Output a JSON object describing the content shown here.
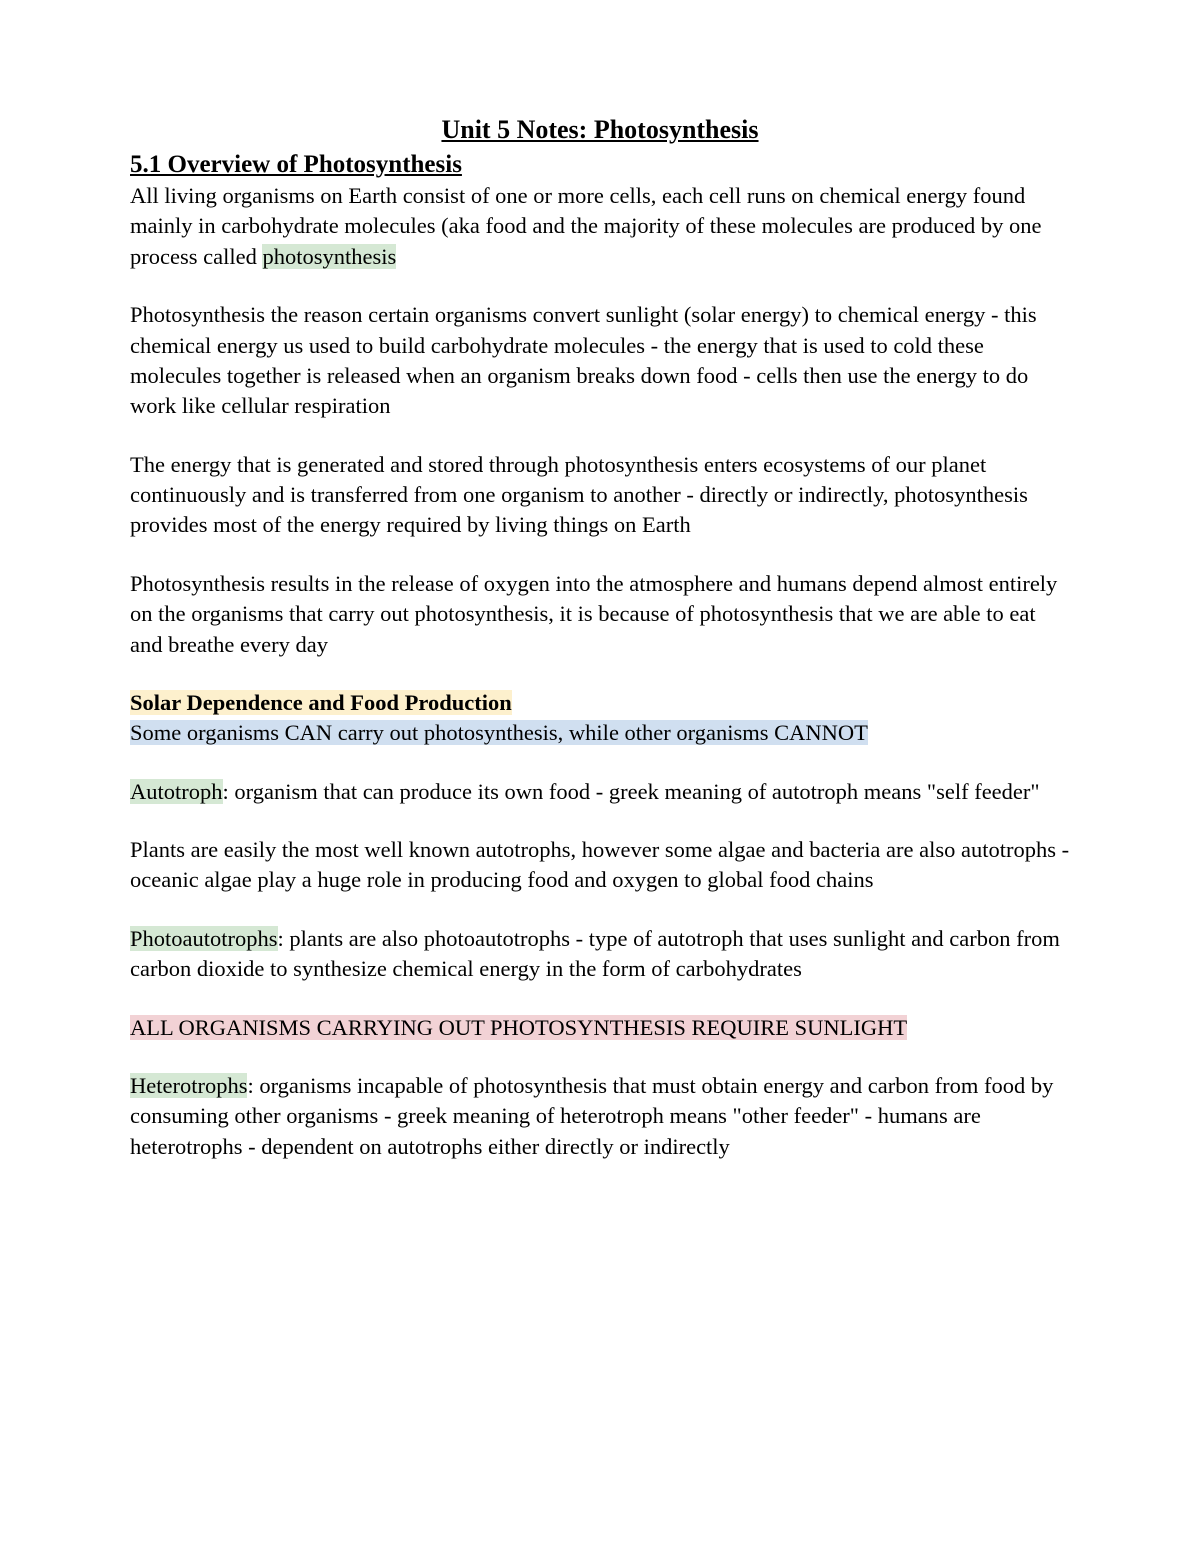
{
  "colors": {
    "text": "#000000",
    "background": "#ffffff",
    "highlight_green": "#d5e8d4",
    "highlight_yellow": "#fdf0cd",
    "highlight_blue": "#d0dff0",
    "highlight_pink": "#f2d2d5"
  },
  "typography": {
    "font_family": "Georgia, 'Times New Roman', serif",
    "title_fontsize": 26,
    "heading_fontsize": 25,
    "body_fontsize": 22.5,
    "line_height": 1.35
  },
  "title": "Unit 5 Notes: Photosynthesis",
  "section_heading": "5.1 Overview of Photosynthesis",
  "para1": {
    "pre": "All living organisms on Earth consist of one or more cells, each cell runs on chemical energy found mainly in carbohydrate molecules (aka food and the majority of these molecules are produced by one process called ",
    "hl": "photosynthesis"
  },
  "para2": "Photosynthesis the reason certain organisms convert sunlight (solar energy) to chemical energy - this chemical energy us used to build carbohydrate molecules - the energy that is used to cold these molecules together is released when an organism breaks down food - cells then use the energy to do work like cellular respiration",
  "para3": "The energy that is generated and stored through photosynthesis enters ecosystems of our planet continuously and is transferred from one organism to another - directly or indirectly, photosynthesis provides most of the energy required by living things on Earth",
  "para4": "Photosynthesis results in the release of oxygen into the atmosphere and humans depend almost entirely on the organisms that carry out photosynthesis, it is because of photosynthesis that we are able to eat and breathe every day",
  "sub_heading": "Solar Dependence and Food Production",
  "para5_hl": "Some organisms CAN carry out photosynthesis, while other organisms CANNOT",
  "para6": {
    "hl": "Autotroph",
    "post": ": organism that can produce its own food - greek meaning of autotroph means \"self feeder\""
  },
  "para7": "Plants are easily the most well known autotrophs, however some algae and bacteria are also autotrophs - oceanic algae play a huge role in producing food and oxygen to global food chains",
  "para8": {
    "hl": "Photoautotrophs",
    "post": ": plants are also photoautotrophs - type of autotroph that uses sunlight and carbon from carbon dioxide to synthesize chemical energy in the form of carbohydrates"
  },
  "para9_hl": "ALL ORGANISMS CARRYING OUT PHOTOSYNTHESIS REQUIRE SUNLIGHT",
  "para10": {
    "hl": "Heterotrophs",
    "post": ": organisms incapable of photosynthesis that must obtain energy and carbon from food by consuming other organisms  - greek meaning of heterotroph means \"other feeder\" - humans are heterotrophs - dependent on autotrophs either directly or indirectly"
  }
}
